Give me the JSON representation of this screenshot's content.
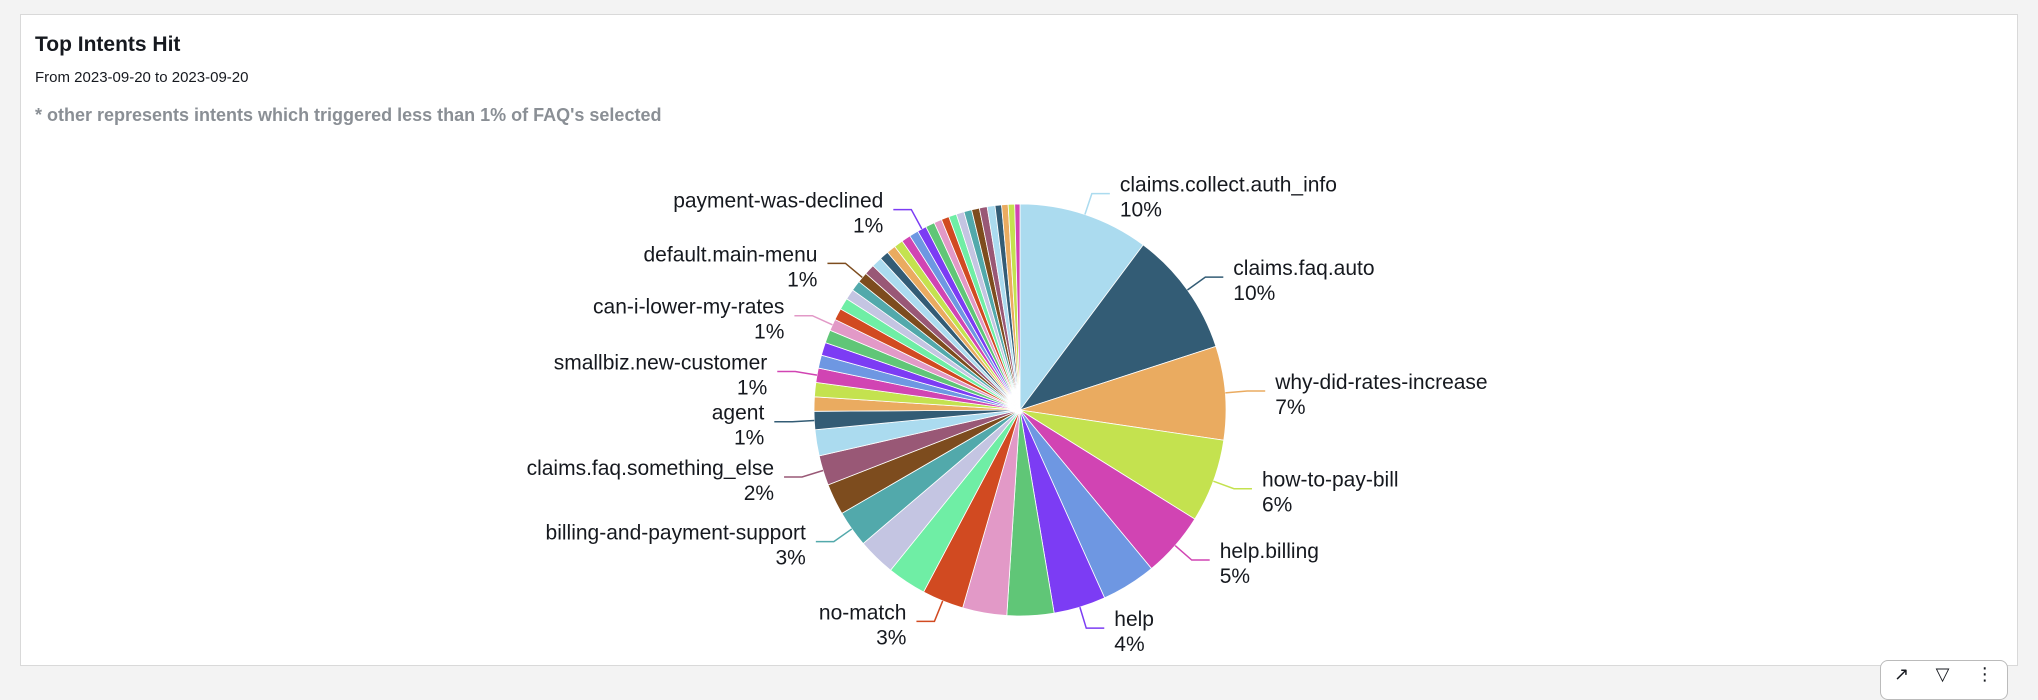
{
  "panel": {
    "title": "Top Intents Hit",
    "date_range": "From 2023-09-20 to 2023-09-20",
    "note": "* other represents intents which triggered less than 1% of FAQ's selected"
  },
  "toolbar": {
    "icons": [
      "expand-icon",
      "filter-icon",
      "more-options-icon"
    ]
  },
  "chart_data": {
    "type": "pie",
    "title": "",
    "slices": [
      {
        "label": "claims.collect.auth_info",
        "pct_label": "10%",
        "value": 10.0,
        "color": "#abdbef",
        "show_label": true
      },
      {
        "label": "claims.faq.auto",
        "pct_label": "10%",
        "value": 9.6,
        "color": "#335c75",
        "show_label": true
      },
      {
        "label": "why-did-rates-increase",
        "pct_label": "7%",
        "value": 7.2,
        "color": "#eaab60",
        "show_label": true
      },
      {
        "label": "how-to-pay-bill",
        "pct_label": "6%",
        "value": 6.4,
        "color": "#c4e24f",
        "show_label": true
      },
      {
        "label": "help.billing",
        "pct_label": "5%",
        "value": 5.0,
        "color": "#d144b3",
        "show_label": true
      },
      {
        "label": "",
        "pct_label": "",
        "value": 4.2,
        "color": "#6e97e2",
        "show_label": false
      },
      {
        "label": "help",
        "pct_label": "4%",
        "value": 4.0,
        "color": "#7c3cf4",
        "show_label": true
      },
      {
        "label": "",
        "pct_label": "",
        "value": 3.6,
        "color": "#60c677",
        "show_label": false
      },
      {
        "label": "",
        "pct_label": "",
        "value": 3.4,
        "color": "#e299c7",
        "show_label": false
      },
      {
        "label": "no-match",
        "pct_label": "3%",
        "value": 3.2,
        "color": "#d14a21",
        "show_label": true
      },
      {
        "label": "",
        "pct_label": "",
        "value": 3.0,
        "color": "#6feea5",
        "show_label": false
      },
      {
        "label": "",
        "pct_label": "",
        "value": 2.9,
        "color": "#c4c5e2",
        "show_label": false
      },
      {
        "label": "billing-and-payment-support",
        "pct_label": "3%",
        "value": 2.8,
        "color": "#52a9ab",
        "show_label": true
      },
      {
        "label": "",
        "pct_label": "",
        "value": 2.4,
        "color": "#7d4c1e",
        "show_label": false
      },
      {
        "label": "claims.faq.something_else",
        "pct_label": "2%",
        "value": 2.3,
        "color": "#995876",
        "show_label": true
      },
      {
        "label": "",
        "pct_label": "",
        "value": 2.0,
        "color": "#abdbef",
        "show_label": false
      },
      {
        "label": "agent",
        "pct_label": "1%",
        "value": 1.4,
        "color": "#335c75",
        "show_label": true
      },
      {
        "label": "",
        "pct_label": "",
        "value": 1.1,
        "color": "#eaab60",
        "show_label": false
      },
      {
        "label": "",
        "pct_label": "",
        "value": 1.1,
        "color": "#c4e24f",
        "show_label": false
      },
      {
        "label": "smallbiz.new-customer",
        "pct_label": "1%",
        "value": 1.1,
        "color": "#d144b3",
        "show_label": true
      },
      {
        "label": "",
        "pct_label": "",
        "value": 1.0,
        "color": "#6e97e2",
        "show_label": false
      },
      {
        "label": "",
        "pct_label": "",
        "value": 1.0,
        "color": "#7c3cf4",
        "show_label": false
      },
      {
        "label": "",
        "pct_label": "",
        "value": 1.0,
        "color": "#60c677",
        "show_label": false
      },
      {
        "label": "can-i-lower-my-rates",
        "pct_label": "1%",
        "value": 0.9,
        "color": "#e299c7",
        "show_label": true
      },
      {
        "label": "",
        "pct_label": "",
        "value": 0.9,
        "color": "#d14a21",
        "show_label": false
      },
      {
        "label": "",
        "pct_label": "",
        "value": 0.9,
        "color": "#6feea5",
        "show_label": false
      },
      {
        "label": "",
        "pct_label": "",
        "value": 0.8,
        "color": "#c4c5e2",
        "show_label": false
      },
      {
        "label": "",
        "pct_label": "",
        "value": 0.8,
        "color": "#52a9ab",
        "show_label": false
      },
      {
        "label": "default.main-menu",
        "pct_label": "1%",
        "value": 0.8,
        "color": "#7d4c1e",
        "show_label": true
      },
      {
        "label": "",
        "pct_label": "",
        "value": 0.8,
        "color": "#995876",
        "show_label": false
      },
      {
        "label": "",
        "pct_label": "",
        "value": 0.8,
        "color": "#abdbef",
        "show_label": false
      },
      {
        "label": "",
        "pct_label": "",
        "value": 0.7,
        "color": "#335c75",
        "show_label": false
      },
      {
        "label": "",
        "pct_label": "",
        "value": 0.7,
        "color": "#eaab60",
        "show_label": false
      },
      {
        "label": "",
        "pct_label": "",
        "value": 0.7,
        "color": "#c4e24f",
        "show_label": false
      },
      {
        "label": "",
        "pct_label": "",
        "value": 0.7,
        "color": "#d144b3",
        "show_label": false
      },
      {
        "label": "",
        "pct_label": "",
        "value": 0.7,
        "color": "#6e97e2",
        "show_label": false
      },
      {
        "label": "payment-was-declined",
        "pct_label": "1%",
        "value": 0.7,
        "color": "#7c3cf4",
        "show_label": true
      },
      {
        "label": "",
        "pct_label": "",
        "value": 0.7,
        "color": "#60c677",
        "show_label": false
      },
      {
        "label": "",
        "pct_label": "",
        "value": 0.6,
        "color": "#e299c7",
        "show_label": false
      },
      {
        "label": "",
        "pct_label": "",
        "value": 0.6,
        "color": "#d14a21",
        "show_label": false
      },
      {
        "label": "",
        "pct_label": "",
        "value": 0.6,
        "color": "#6feea5",
        "show_label": false
      },
      {
        "label": "",
        "pct_label": "",
        "value": 0.6,
        "color": "#c4c5e2",
        "show_label": false
      },
      {
        "label": "",
        "pct_label": "",
        "value": 0.6,
        "color": "#52a9ab",
        "show_label": false
      },
      {
        "label": "",
        "pct_label": "",
        "value": 0.6,
        "color": "#7d4c1e",
        "show_label": false
      },
      {
        "label": "",
        "pct_label": "",
        "value": 0.6,
        "color": "#995876",
        "show_label": false
      },
      {
        "label": "",
        "pct_label": "",
        "value": 0.6,
        "color": "#abdbef",
        "show_label": false
      },
      {
        "label": "",
        "pct_label": "",
        "value": 0.5,
        "color": "#335c75",
        "show_label": false
      },
      {
        "label": "",
        "pct_label": "",
        "value": 0.5,
        "color": "#eaab60",
        "show_label": false
      },
      {
        "label": "",
        "pct_label": "",
        "value": 0.5,
        "color": "#c4e24f",
        "show_label": false
      },
      {
        "label": "",
        "pct_label": "",
        "value": 0.4,
        "color": "#d144b3",
        "show_label": false
      }
    ]
  }
}
